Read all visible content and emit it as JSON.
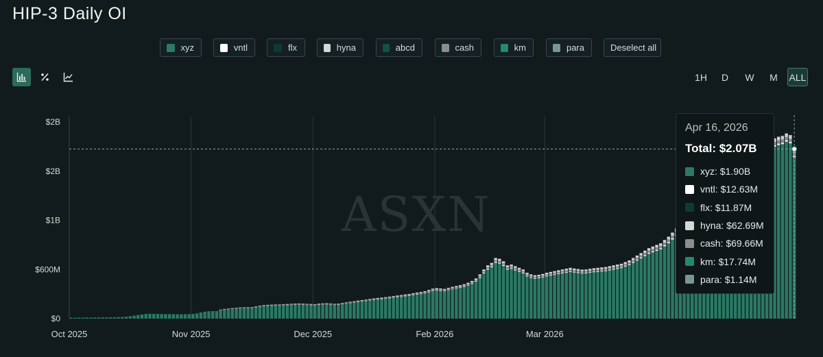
{
  "title": "HIP-3 Daily OI",
  "legend": [
    {
      "label": "xyz",
      "color": "#2a7a64"
    },
    {
      "label": "vntl",
      "color": "#ffffff"
    },
    {
      "label": "flx",
      "color": "#0e3b2f"
    },
    {
      "label": "hyna",
      "color": "#d6d6d6"
    },
    {
      "label": "abcd",
      "color": "#11533f"
    },
    {
      "label": "cash",
      "color": "#8d8d8d"
    },
    {
      "label": "km",
      "color": "#248a6a"
    },
    {
      "label": "para",
      "color": "#7a9690"
    }
  ],
  "deselect_label": "Deselect all",
  "view_icons": [
    "bar-chart-icon",
    "percent-icon",
    "line-chart-icon"
  ],
  "ranges": [
    "1H",
    "D",
    "W",
    "M",
    "ALL"
  ],
  "active_range": "ALL",
  "watermark": "ASXN",
  "tooltip": {
    "date": "Apr 16, 2026",
    "total": "Total: $2.07B",
    "rows": [
      {
        "label": "xyz: $1.90B",
        "color": "#2a7a64"
      },
      {
        "label": "vntl: $12.63M",
        "color": "#ffffff"
      },
      {
        "label": "flx: $11.87M",
        "color": "#0e3b2f"
      },
      {
        "label": "hyna: $62.69M",
        "color": "#d6d6d6"
      },
      {
        "label": "cash: $69.66M",
        "color": "#8d8d8d"
      },
      {
        "label": "km: $17.74M",
        "color": "#248a6a"
      },
      {
        "label": "para: $1.14M",
        "color": "#7a9690"
      }
    ]
  },
  "chart_data": {
    "type": "bar",
    "stacked": true,
    "title": "HIP-3 Daily OI",
    "y_tick_labels": [
      "$0",
      "$600M",
      "$1B",
      "$2B",
      "$2B"
    ],
    "y_tick_values": [
      0,
      600000000,
      1200000000,
      1800000000,
      2400000000
    ],
    "ylim": [
      0,
      2400000000
    ],
    "x_tick_labels": [
      "Oct 2025",
      "Nov 2025",
      "Dec 2025",
      "Feb 2026",
      "Mar 2026"
    ],
    "x_tick_index": [
      0,
      31,
      62,
      93,
      121
    ],
    "grid": "vertical",
    "crosshair_value": 2070000000,
    "series_colors": {
      "xyz": "#2a7a64",
      "top": [
        "#cfcfcf",
        "#8d8d8d",
        "#ffffff"
      ]
    },
    "daily_total_oi": [
      12,
      12,
      13,
      13,
      14,
      14,
      15,
      15,
      16,
      16,
      17,
      18,
      20,
      22,
      25,
      32,
      40,
      48,
      55,
      62,
      64,
      63,
      62,
      61,
      60,
      60,
      59,
      58,
      58,
      59,
      60,
      62,
      70,
      82,
      92,
      98,
      100,
      100,
      110,
      118,
      124,
      128,
      132,
      136,
      138,
      138,
      140,
      150,
      158,
      164,
      168,
      170,
      172,
      172,
      176,
      178,
      180,
      182,
      185,
      182,
      180,
      178,
      176,
      182,
      186,
      188,
      185,
      180,
      182,
      190,
      198,
      206,
      212,
      220,
      226,
      232,
      240,
      246,
      252,
      256,
      262,
      268,
      275,
      282,
      288,
      295,
      300,
      310,
      318,
      325,
      335,
      350,
      366,
      372,
      368,
      362,
      375,
      388,
      398,
      408,
      420,
      438,
      460,
      490,
      540,
      600,
      650,
      680,
      740,
      730,
      700,
      650,
      660,
      640,
      620,
      600,
      560,
      540,
      530,
      535,
      545,
      560,
      570,
      580,
      590,
      600,
      610,
      620,
      612,
      605,
      598,
      600,
      608,
      615,
      620,
      625,
      630,
      640,
      650,
      660,
      670,
      690,
      710,
      740,
      770,
      800,
      830,
      860,
      880,
      900,
      920,
      960,
      1000,
      1050,
      1100,
      1150,
      1180,
      1200,
      1220,
      1150,
      1100,
      1080,
      1060,
      1100,
      1160,
      1230,
      1300,
      1380,
      1450,
      1520,
      1600,
      1700,
      1800,
      1950,
      2150,
      2300,
      2330,
      2280,
      2250,
      2200,
      2220,
      2230,
      2260,
      2240,
      2070
    ]
  }
}
